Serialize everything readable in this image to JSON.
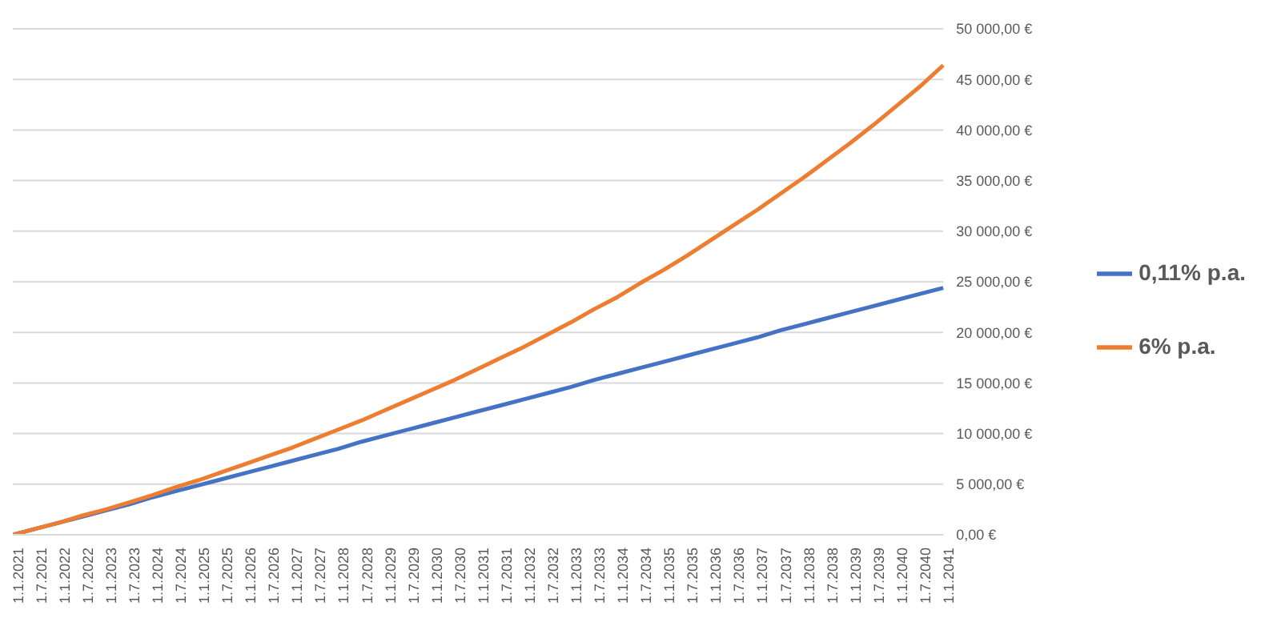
{
  "chart_data": {
    "type": "line",
    "categories": [
      "1.1.2021",
      "1.7.2021",
      "1.1.2022",
      "1.7.2022",
      "1.1.2023",
      "1.7.2023",
      "1.1.2024",
      "1.7.2024",
      "1.1.2025",
      "1.7.2025",
      "1.1.2026",
      "1.7.2026",
      "1.1.2027",
      "1.7.2027",
      "1.1.2028",
      "1.7.2028",
      "1.1.2029",
      "1.7.2029",
      "1.1.2030",
      "1.7.2030",
      "1.1.2031",
      "1.7.2031",
      "1.1.2032",
      "1.7.2032",
      "1.1.2033",
      "1.7.2033",
      "1.1.2034",
      "1.7.2034",
      "1.1.2035",
      "1.7.2035",
      "1.1.2036",
      "1.7.2036",
      "1.1.2037",
      "1.7.2037",
      "1.1.2038",
      "1.7.2038",
      "1.1.2039",
      "1.7.2039",
      "1.1.2040",
      "1.7.2040",
      "1.1.2041"
    ],
    "series": [
      {
        "name": "0,11% p.a.",
        "color": "#4472c4",
        "values": [
          0,
          600,
          1200,
          1800,
          2400,
          3000,
          3700,
          4300,
          4900,
          5500,
          6100,
          6700,
          7300,
          7900,
          8500,
          9200,
          9800,
          10400,
          11000,
          11600,
          12200,
          12800,
          13400,
          14000,
          14600,
          15300,
          15900,
          16500,
          17100,
          17700,
          18300,
          18900,
          19500,
          20200,
          20800,
          21400,
          22000,
          22600,
          23200,
          23800,
          24400
        ]
      },
      {
        "name": "6% p.a.",
        "color": "#ed7d31",
        "values": [
          0,
          600,
          1200,
          1900,
          2500,
          3200,
          3900,
          4700,
          5400,
          6200,
          7000,
          7800,
          8600,
          9500,
          10400,
          11300,
          12300,
          13300,
          14300,
          15300,
          16400,
          17500,
          18600,
          19800,
          21000,
          22300,
          23500,
          24900,
          26200,
          27600,
          29100,
          30600,
          32100,
          33700,
          35300,
          37000,
          38700,
          40500,
          42400,
          44300,
          46400
        ]
      }
    ],
    "ylim": [
      0,
      50000
    ],
    "yticks": [
      {
        "value": 0,
        "label": "0,00 €"
      },
      {
        "value": 5000,
        "label": "5 000,00 €"
      },
      {
        "value": 10000,
        "label": "10 000,00 €"
      },
      {
        "value": 15000,
        "label": "15 000,00 €"
      },
      {
        "value": 20000,
        "label": "20 000,00 €"
      },
      {
        "value": 25000,
        "label": "25 000,00 €"
      },
      {
        "value": 30000,
        "label": "30 000,00 €"
      },
      {
        "value": 35000,
        "label": "35 000,00 €"
      },
      {
        "value": 40000,
        "label": "40 000,00 €"
      },
      {
        "value": 45000,
        "label": "45 000,00 €"
      },
      {
        "value": 50000,
        "label": "50 000,00 €"
      }
    ],
    "grid": "y",
    "legend": "right",
    "marker": "none",
    "line_style": "solid"
  }
}
